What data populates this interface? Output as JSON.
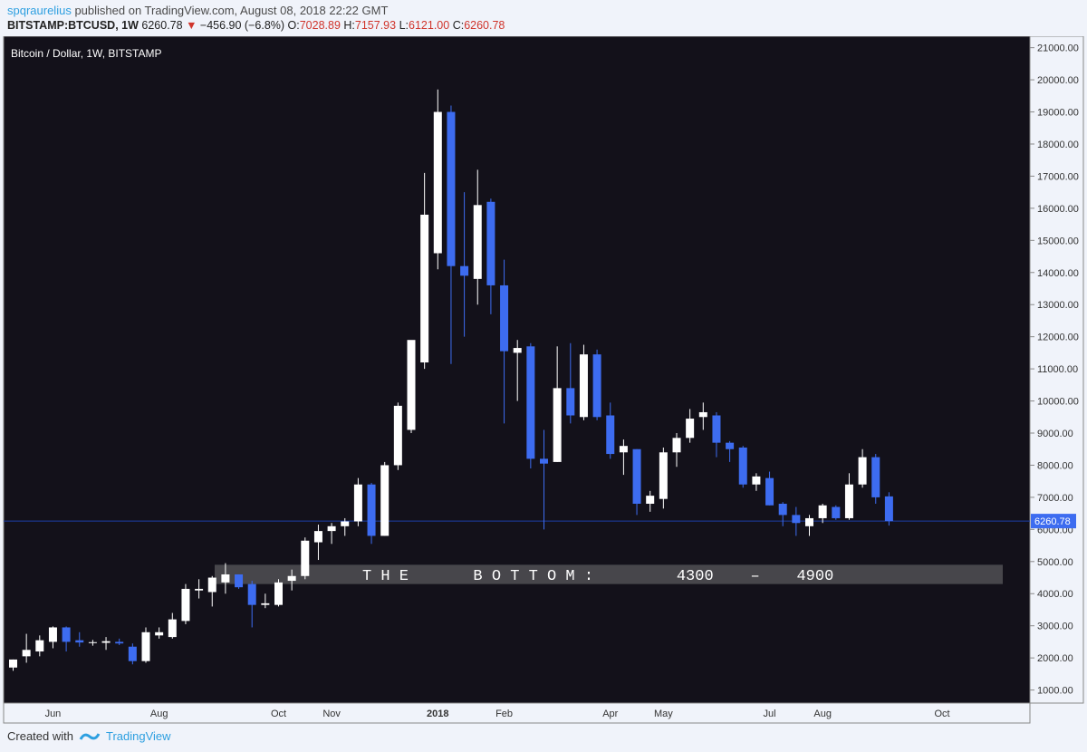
{
  "header": {
    "author": "spqraurelius",
    "published_text": "published on TradingView.com, August 08, 2018 22:22 GMT",
    "symbol": "BITSTAMP:BTCUSD, 1W",
    "last": "6260.78",
    "change": "−456.90 (−6.8%)",
    "o_label": "O:",
    "o_val": "7028.89",
    "h_label": "H:",
    "h_val": "7157.93",
    "l_label": "L:",
    "l_val": "6121.00",
    "c_label": "C:",
    "c_val": "6260.78"
  },
  "footer": {
    "created_with": "Created with",
    "brand": "TradingView"
  },
  "colors": {
    "up": "#ffffff",
    "down": "#3d6cf0",
    "background": "#13111a",
    "price_line": "#1c3fa8",
    "zone": "#4a4a4e"
  },
  "chart_data": {
    "type": "candlestick",
    "title": "Bitcoin / Dollar, 1W, BITSTAMP",
    "last_price_label": "6260.78",
    "annotation": {
      "text": "T H E       B O T T O M :         4300    –    4900",
      "low": 4300,
      "high": 4900
    },
    "ylim": [
      650,
      21300
    ],
    "y_ticks": [
      1000,
      2000,
      3000,
      4000,
      5000,
      6000,
      7000,
      8000,
      9000,
      10000,
      11000,
      12000,
      13000,
      14000,
      15000,
      16000,
      17000,
      18000,
      19000,
      20000,
      21000
    ],
    "y_tick_labels": [
      "1000.00",
      "2000.00",
      "3000.00",
      "4000.00",
      "5000.00",
      "6000.00",
      "7000.00",
      "8000.00",
      "9000.00",
      "10000.00",
      "11000.00",
      "12000.00",
      "13000.00",
      "14000.00",
      "15000.00",
      "16000.00",
      "17000.00",
      "18000.00",
      "19000.00",
      "20000.00",
      "21000.00"
    ],
    "x_labels": [
      {
        "label": "Jun",
        "week": 3,
        "bold": false
      },
      {
        "label": "Aug",
        "week": 11,
        "bold": false
      },
      {
        "label": "Oct",
        "week": 20,
        "bold": false
      },
      {
        "label": "Nov",
        "week": 24,
        "bold": false
      },
      {
        "label": "2018",
        "week": 32,
        "bold": true
      },
      {
        "label": "Feb",
        "week": 37,
        "bold": false
      },
      {
        "label": "Apr",
        "week": 45,
        "bold": false
      },
      {
        "label": "May",
        "week": 49,
        "bold": false
      },
      {
        "label": "Jul",
        "week": 57,
        "bold": false
      },
      {
        "label": "Aug",
        "week": 61,
        "bold": false
      },
      {
        "label": "Oct",
        "week": 70,
        "bold": false
      }
    ],
    "candles": [
      {
        "o": 1700,
        "h": 1950,
        "l": 1600,
        "c": 1950
      },
      {
        "o": 2050,
        "h": 2750,
        "l": 1850,
        "c": 2250
      },
      {
        "o": 2200,
        "h": 2700,
        "l": 2050,
        "c": 2550
      },
      {
        "o": 2500,
        "h": 2980,
        "l": 2300,
        "c": 2950
      },
      {
        "o": 2950,
        "h": 2980,
        "l": 2200,
        "c": 2500
      },
      {
        "o": 2550,
        "h": 2800,
        "l": 2350,
        "c": 2480
      },
      {
        "o": 2480,
        "h": 2560,
        "l": 2380,
        "c": 2490
      },
      {
        "o": 2470,
        "h": 2650,
        "l": 2250,
        "c": 2520
      },
      {
        "o": 2500,
        "h": 2600,
        "l": 2400,
        "c": 2450
      },
      {
        "o": 2350,
        "h": 2450,
        "l": 1800,
        "c": 1900
      },
      {
        "o": 1900,
        "h": 2950,
        "l": 1850,
        "c": 2800
      },
      {
        "o": 2700,
        "h": 2950,
        "l": 2600,
        "c": 2800
      },
      {
        "o": 2650,
        "h": 3400,
        "l": 2600,
        "c": 3200
      },
      {
        "o": 3150,
        "h": 4300,
        "l": 3050,
        "c": 4150
      },
      {
        "o": 4100,
        "h": 4450,
        "l": 3850,
        "c": 4150
      },
      {
        "o": 4050,
        "h": 4550,
        "l": 3600,
        "c": 4500
      },
      {
        "o": 4350,
        "h": 4950,
        "l": 4000,
        "c": 4600
      },
      {
        "o": 4600,
        "h": 4600,
        "l": 4150,
        "c": 4200
      },
      {
        "o": 4300,
        "h": 4400,
        "l": 2950,
        "c": 3650
      },
      {
        "o": 3650,
        "h": 4000,
        "l": 3550,
        "c": 3700
      },
      {
        "o": 3650,
        "h": 4450,
        "l": 3600,
        "c": 4350
      },
      {
        "o": 4400,
        "h": 4750,
        "l": 4100,
        "c": 4550
      },
      {
        "o": 4550,
        "h": 5750,
        "l": 4450,
        "c": 5650
      },
      {
        "o": 5600,
        "h": 6150,
        "l": 5050,
        "c": 5950
      },
      {
        "o": 5950,
        "h": 6200,
        "l": 5550,
        "c": 6100
      },
      {
        "o": 6100,
        "h": 6350,
        "l": 5800,
        "c": 6250
      },
      {
        "o": 6250,
        "h": 7600,
        "l": 6100,
        "c": 7400
      },
      {
        "o": 7400,
        "h": 7450,
        "l": 5550,
        "c": 5800
      },
      {
        "o": 5800,
        "h": 8100,
        "l": 5800,
        "c": 8000
      },
      {
        "o": 8000,
        "h": 9950,
        "l": 7850,
        "c": 9850
      },
      {
        "o": 9100,
        "h": 11850,
        "l": 9000,
        "c": 11900
      },
      {
        "o": 11200,
        "h": 17100,
        "l": 11000,
        "c": 15800
      },
      {
        "o": 14600,
        "h": 19700,
        "l": 14100,
        "c": 19000
      },
      {
        "o": 19000,
        "h": 19200,
        "l": 11150,
        "c": 14200
      },
      {
        "o": 14200,
        "h": 16500,
        "l": 12000,
        "c": 13900
      },
      {
        "o": 13800,
        "h": 17200,
        "l": 13000,
        "c": 16100
      },
      {
        "o": 16200,
        "h": 16300,
        "l": 12700,
        "c": 13600
      },
      {
        "o": 13600,
        "h": 14400,
        "l": 9300,
        "c": 11550
      },
      {
        "o": 11500,
        "h": 11900,
        "l": 10000,
        "c": 11650
      },
      {
        "o": 11700,
        "h": 11800,
        "l": 7900,
        "c": 8200
      },
      {
        "o": 8200,
        "h": 9100,
        "l": 6000,
        "c": 8050
      },
      {
        "o": 8100,
        "h": 11700,
        "l": 8100,
        "c": 10400
      },
      {
        "o": 10400,
        "h": 11800,
        "l": 9300,
        "c": 9550
      },
      {
        "o": 9500,
        "h": 11750,
        "l": 9400,
        "c": 11450
      },
      {
        "o": 11450,
        "h": 11600,
        "l": 9400,
        "c": 9500
      },
      {
        "o": 9550,
        "h": 9950,
        "l": 8200,
        "c": 8350
      },
      {
        "o": 8400,
        "h": 8800,
        "l": 7700,
        "c": 8600
      },
      {
        "o": 8500,
        "h": 8500,
        "l": 6450,
        "c": 6800
      },
      {
        "o": 6800,
        "h": 7200,
        "l": 6550,
        "c": 7050
      },
      {
        "o": 6950,
        "h": 8550,
        "l": 6650,
        "c": 8400
      },
      {
        "o": 8400,
        "h": 9000,
        "l": 7950,
        "c": 8850
      },
      {
        "o": 8850,
        "h": 9750,
        "l": 8700,
        "c": 9450
      },
      {
        "o": 9500,
        "h": 9950,
        "l": 9100,
        "c": 9650
      },
      {
        "o": 9550,
        "h": 9650,
        "l": 8250,
        "c": 8700
      },
      {
        "o": 8700,
        "h": 8750,
        "l": 8100,
        "c": 8500
      },
      {
        "o": 8550,
        "h": 8600,
        "l": 7300,
        "c": 7400
      },
      {
        "o": 7400,
        "h": 7750,
        "l": 7200,
        "c": 7650
      },
      {
        "o": 7600,
        "h": 7800,
        "l": 6750,
        "c": 6750
      },
      {
        "o": 6800,
        "h": 6850,
        "l": 6100,
        "c": 6450
      },
      {
        "o": 6450,
        "h": 6700,
        "l": 5800,
        "c": 6200
      },
      {
        "o": 6100,
        "h": 6450,
        "l": 5800,
        "c": 6350
      },
      {
        "o": 6350,
        "h": 6800,
        "l": 6200,
        "c": 6750
      },
      {
        "o": 6700,
        "h": 6750,
        "l": 6300,
        "c": 6350
      },
      {
        "o": 6350,
        "h": 7750,
        "l": 6300,
        "c": 7400
      },
      {
        "o": 7400,
        "h": 8500,
        "l": 7300,
        "c": 8250
      },
      {
        "o": 8250,
        "h": 8350,
        "l": 6800,
        "c": 7000
      },
      {
        "o": 7028.89,
        "h": 7157.93,
        "l": 6121,
        "c": 6260.78
      }
    ]
  }
}
